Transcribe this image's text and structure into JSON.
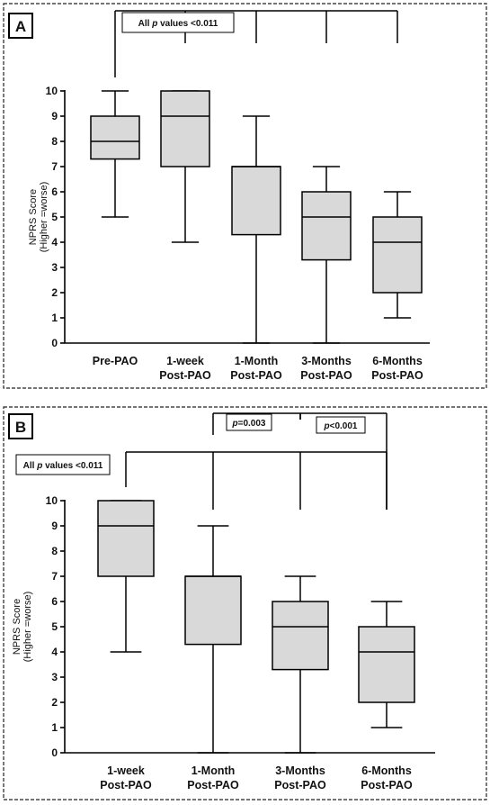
{
  "panels": [
    {
      "letter": "A",
      "chart_data": {
        "type": "box",
        "ylabel": "NPRS Score",
        "ylabel_sub": "(Higher =worse)",
        "ylim": [
          0,
          10
        ],
        "yticks": [
          0,
          1,
          2,
          3,
          4,
          5,
          6,
          7,
          8,
          9,
          10
        ],
        "categories": [
          [
            "Pre-PAO"
          ],
          [
            "1-week",
            "Post-PAO"
          ],
          [
            "1-Month",
            "Post-PAO"
          ],
          [
            "3-Months",
            "Post-PAO"
          ],
          [
            "6-Months",
            "Post-PAO"
          ]
        ],
        "boxes": [
          {
            "min": 5,
            "q1": 7.3,
            "median": 8,
            "q3": 9,
            "max": 10
          },
          {
            "min": 4,
            "q1": 7,
            "median": 9,
            "q3": 10,
            "max": 10
          },
          {
            "min": 0,
            "q1": 4.3,
            "median": 7,
            "q3": 7,
            "max": 9
          },
          {
            "min": 0,
            "q1": 3.3,
            "median": 5,
            "q3": 6,
            "max": 7
          },
          {
            "min": 1,
            "q1": 2,
            "median": 4,
            "q3": 5,
            "max": 6
          }
        ],
        "annotations": [
          {
            "label_prefix": "All ",
            "label_italic": "p",
            "label_suffix": " values <0.011",
            "from": 0,
            "to": [
              1,
              2,
              3,
              4
            ]
          }
        ]
      }
    },
    {
      "letter": "B",
      "chart_data": {
        "type": "box",
        "ylabel": "NPRS Score",
        "ylabel_sub": "(Higher =worse)",
        "ylim": [
          0,
          10
        ],
        "yticks": [
          0,
          1,
          2,
          3,
          4,
          5,
          6,
          7,
          8,
          9,
          10
        ],
        "categories": [
          [
            "1-week",
            "Post-PAO"
          ],
          [
            "1-Month",
            "Post-PAO"
          ],
          [
            "3-Months",
            "Post-PAO"
          ],
          [
            "6-Months",
            "Post-PAO"
          ]
        ],
        "boxes": [
          {
            "min": 4,
            "q1": 7,
            "median": 9,
            "q3": 10,
            "max": 10
          },
          {
            "min": 0,
            "q1": 4.3,
            "median": 7,
            "q3": 7,
            "max": 9
          },
          {
            "min": 0,
            "q1": 3.3,
            "median": 5,
            "q3": 6,
            "max": 7
          },
          {
            "min": 1,
            "q1": 2,
            "median": 4,
            "q3": 5,
            "max": 6
          }
        ],
        "annotations": [
          {
            "label_prefix": "All ",
            "label_italic": "p",
            "label_suffix": " values <0.011",
            "from": 0,
            "to": [
              1,
              2,
              3
            ]
          },
          {
            "label_prefix": "",
            "label_italic": "p",
            "label_suffix": "=0.003",
            "from": 1,
            "to": [
              2
            ]
          },
          {
            "label_prefix": "",
            "label_italic": "p",
            "label_suffix": "<0.001",
            "from": 2,
            "to": [
              3
            ]
          }
        ]
      }
    }
  ]
}
